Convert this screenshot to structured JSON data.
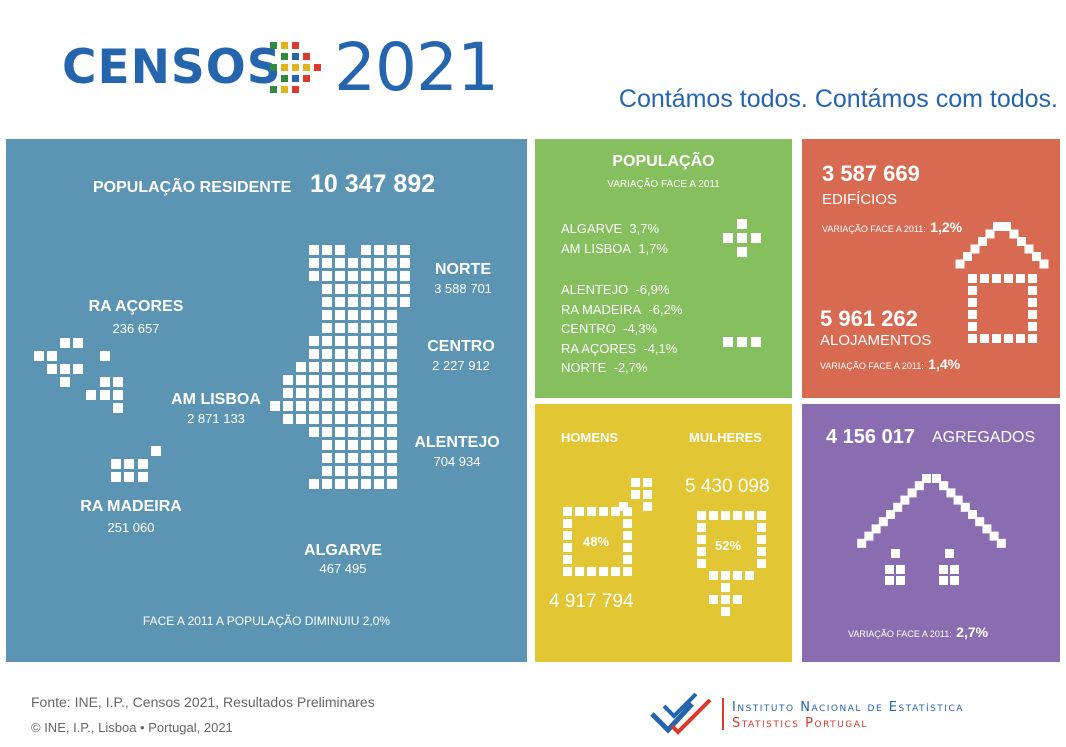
{
  "header": {
    "logo_word": "CENSOS",
    "logo_year": "2021",
    "tagline": "Contámos todos. Contámos com todos.",
    "logo_colors": [
      "#2e8b3e",
      "#e0b31b",
      "#d93a2b"
    ]
  },
  "population_panel": {
    "label": "POPULAÇÃO RESIDENTE",
    "total": "10 347 892",
    "regions": [
      {
        "name": "NORTE",
        "value": "3 588 701"
      },
      {
        "name": "CENTRO",
        "value": "2 227 912"
      },
      {
        "name": "AM LISBOA",
        "value": "2 871 133"
      },
      {
        "name": "ALENTEJO",
        "value": "704 934"
      },
      {
        "name": "ALGARVE",
        "value": "467 495"
      },
      {
        "name": "RA AÇORES",
        "value": "236 657"
      },
      {
        "name": "RA MADEIRA",
        "value": "251 060"
      }
    ],
    "footer_note": "FACE A 2011 A POPULAÇÃO DIMINUIU 2,0%",
    "color": "#5b95b3"
  },
  "variation_panel": {
    "title": "POPULAÇÃO",
    "subtitle": "VARIAÇÃO FACE A 2011",
    "increases": [
      {
        "region": "ALGARVE",
        "value": "3,7%"
      },
      {
        "region": "AM LISBOA",
        "value": "1,7%"
      }
    ],
    "decreases": [
      {
        "region": "ALENTEJO",
        "value": "-6,9%"
      },
      {
        "region": "RA MADEIRA",
        "value": "-6,2%"
      },
      {
        "region": "CENTRO",
        "value": "-4,3%"
      },
      {
        "region": "RA AÇORES",
        "value": "-4,1%"
      },
      {
        "region": "NORTE",
        "value": "-2,7%"
      }
    ],
    "color": "#86bf5e"
  },
  "buildings_panel": {
    "buildings_value": "3 587 669",
    "buildings_label": "EDIFÍCIOS",
    "buildings_variation_label": "VARIAÇÃO FACE A 2011:",
    "buildings_variation_value": "1,2%",
    "dwellings_value": "5 961 262",
    "dwellings_label": "ALOJAMENTOS",
    "dwellings_variation_label": "VARIAÇÃO FACE A 2011:",
    "dwellings_variation_value": "1,4%",
    "color": "#d86a51"
  },
  "gender_panel": {
    "men_label": "HOMENS",
    "women_label": "MULHERES",
    "men_value": "4 917 794",
    "women_value": "5 430 098",
    "men_pct": "48%",
    "women_pct": "52%",
    "color": "#e2c633"
  },
  "households_panel": {
    "value": "4 156 017",
    "label": "AGREGADOS",
    "variation_label": "VARIAÇÃO FACE A 2011:",
    "variation_value": "2,7%",
    "color": "#8a6db0"
  },
  "footer": {
    "source": "Fonte: INE, I.P., Censos 2021, Resultados Preliminares",
    "copyright": "© INE, I.P., Lisboa • Portugal, 2021",
    "institute_line1": "Instituto Nacional de Estatística",
    "institute_line2": "Statistics Portugal"
  }
}
